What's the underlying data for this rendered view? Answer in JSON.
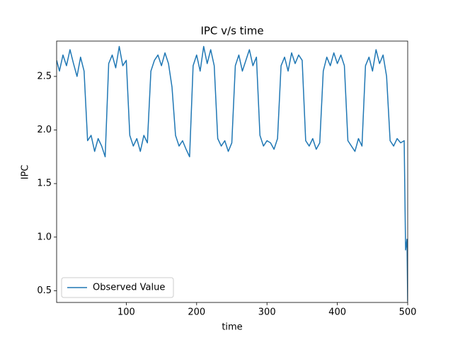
{
  "chart_data": {
    "type": "line",
    "title": "IPC v/s time",
    "xlabel": "time",
    "ylabel": "IPC",
    "x": [
      1,
      5,
      10,
      15,
      20,
      25,
      30,
      35,
      40,
      45,
      50,
      55,
      60,
      65,
      70,
      75,
      80,
      85,
      90,
      95,
      100,
      105,
      110,
      115,
      120,
      125,
      130,
      135,
      140,
      145,
      150,
      155,
      160,
      165,
      170,
      175,
      180,
      185,
      190,
      195,
      200,
      205,
      210,
      215,
      220,
      225,
      230,
      235,
      240,
      245,
      250,
      255,
      260,
      265,
      270,
      275,
      280,
      285,
      290,
      295,
      300,
      305,
      310,
      315,
      320,
      325,
      330,
      335,
      340,
      345,
      350,
      355,
      360,
      365,
      370,
      375,
      380,
      385,
      390,
      395,
      400,
      405,
      410,
      415,
      420,
      425,
      430,
      435,
      440,
      445,
      450,
      455,
      460,
      465,
      470,
      475,
      480,
      485,
      490,
      495,
      497,
      499,
      500
    ],
    "series": [
      {
        "name": "Observed Value",
        "color": "#1f77b4",
        "values": [
          2.65,
          2.55,
          2.7,
          2.6,
          2.75,
          2.62,
          2.5,
          2.68,
          2.55,
          1.9,
          1.95,
          1.8,
          1.92,
          1.85,
          1.75,
          2.62,
          2.7,
          2.58,
          2.78,
          2.6,
          2.65,
          1.95,
          1.85,
          1.92,
          1.8,
          1.95,
          1.88,
          2.55,
          2.65,
          2.7,
          2.6,
          2.72,
          2.62,
          2.4,
          1.95,
          1.85,
          1.9,
          1.82,
          1.75,
          2.6,
          2.7,
          2.55,
          2.78,
          2.62,
          2.75,
          2.6,
          1.92,
          1.85,
          1.9,
          1.8,
          1.88,
          2.6,
          2.7,
          2.55,
          2.65,
          2.75,
          2.6,
          2.68,
          1.95,
          1.85,
          1.9,
          1.88,
          1.82,
          1.92,
          2.6,
          2.68,
          2.55,
          2.72,
          2.62,
          2.7,
          2.65,
          1.9,
          1.85,
          1.92,
          1.82,
          1.88,
          2.55,
          2.68,
          2.6,
          2.72,
          2.62,
          2.7,
          2.6,
          1.9,
          1.85,
          1.8,
          1.92,
          1.85,
          2.6,
          2.68,
          2.55,
          2.75,
          2.62,
          2.7,
          2.5,
          1.9,
          1.85,
          1.92,
          1.88,
          1.9,
          0.88,
          0.98,
          0.4
        ]
      }
    ],
    "xlim": [
      1,
      500
    ],
    "xticks": [
      100,
      200,
      300,
      400,
      500
    ],
    "ylim": [
      0.39,
      2.83
    ],
    "yticks": [
      0.5,
      {
        "value": 1.0,
        "label": "1.0"
      },
      1.5,
      {
        "value": 2.0,
        "label": "2.0"
      },
      2.5
    ],
    "legend": "lower left"
  }
}
